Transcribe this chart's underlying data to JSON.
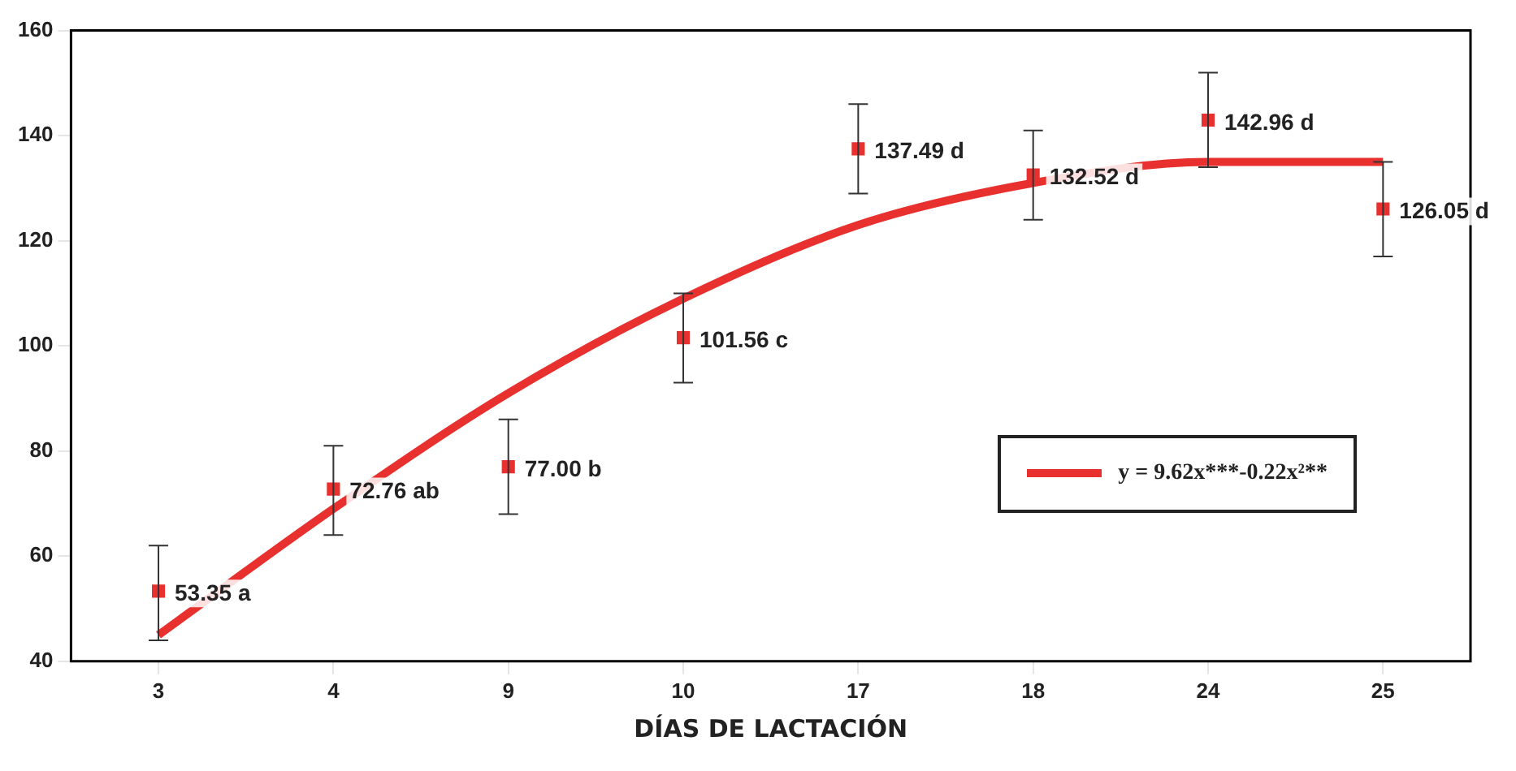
{
  "chart_data": {
    "type": "scatter",
    "xlabel": "DÍAS DE LACTACIÓN",
    "categories": [
      "3",
      "4",
      "9",
      "10",
      "17",
      "18",
      "24",
      "25"
    ],
    "ylim": [
      40,
      160
    ],
    "yticks": [
      40,
      60,
      80,
      100,
      120,
      140,
      160
    ],
    "grid": false,
    "legend": "bottom right",
    "series": [
      {
        "type": "line",
        "name": "y = 9.62x***-0.22x²**",
        "color": "#e8312f",
        "marker": "none",
        "values": [
          45,
          69,
          91,
          109,
          123,
          131,
          135,
          135
        ]
      },
      {
        "color": "#e8312f",
        "marker": "square",
        "values": [
          53.35,
          72.76,
          77.0,
          101.56,
          137.49,
          132.52,
          142.96,
          126.05
        ],
        "errors": [
          [
            44,
            62
          ],
          [
            64,
            81
          ],
          [
            68,
            86
          ],
          [
            93,
            110
          ],
          [
            129,
            146
          ],
          [
            124,
            141
          ],
          [
            134,
            152
          ],
          [
            117,
            135
          ]
        ],
        "value_labels": [
          "53.35 a",
          "72.76 ab",
          "77.00 b",
          "101.56 c",
          "137.49 d",
          "132.52 d",
          "142.96 d",
          "126.05 d"
        ]
      }
    ]
  }
}
